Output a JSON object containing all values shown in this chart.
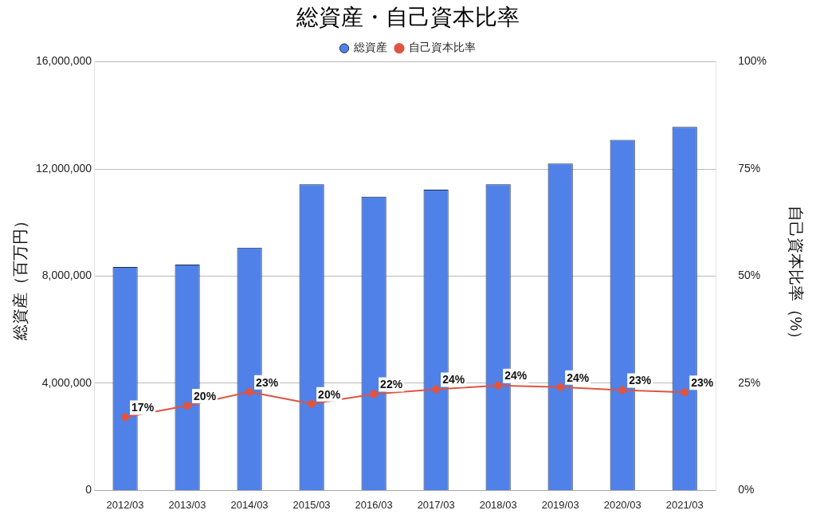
{
  "chart_data": {
    "type": "bar",
    "title": "総資産・自己資本比率",
    "ylabel": "総資産（百万円）",
    "y2label": "自己資本比率（%）",
    "categories": [
      "2012/03",
      "2013/03",
      "2014/03",
      "2015/03",
      "2016/03",
      "2017/03",
      "2018/03",
      "2019/03",
      "2020/03",
      "2021/03"
    ],
    "series": [
      {
        "name": "総資産",
        "color": "#4f81e8",
        "values": [
          8340000,
          8430000,
          9060000,
          11430000,
          10970000,
          11230000,
          11430000,
          12200000,
          13090000,
          13570000
        ]
      },
      {
        "name": "自己資本比率",
        "type": "line",
        "axis": "y2",
        "color": "#de5543",
        "values": [
          17.1,
          19.8,
          23.0,
          20.2,
          22.5,
          23.6,
          24.5,
          24.1,
          23.4,
          22.9
        ],
        "value_labels": [
          "17%",
          "20%",
          "23%",
          "20%",
          "22%",
          "24%",
          "24%",
          "24%",
          "23%",
          "23%"
        ]
      }
    ],
    "ylim": [
      0,
      16000000
    ],
    "yticks": [
      {
        "value": 0,
        "label": "0"
      },
      {
        "value": 4000000,
        "label": "4,000,000"
      },
      {
        "value": 8000000,
        "label": "8,000,000"
      },
      {
        "value": 12000000,
        "label": "12,000,000"
      },
      {
        "value": 16000000,
        "label": "16,000,000"
      }
    ],
    "y2lim": [
      0,
      100
    ],
    "y2ticks": [
      {
        "value": 0,
        "label": "0%"
      },
      {
        "value": 25,
        "label": "25%"
      },
      {
        "value": 50,
        "label": "50%"
      },
      {
        "value": 75,
        "label": "75%"
      },
      {
        "value": 100,
        "label": "100%"
      }
    ],
    "grid": "y",
    "legend": "top",
    "marker": "circle"
  }
}
